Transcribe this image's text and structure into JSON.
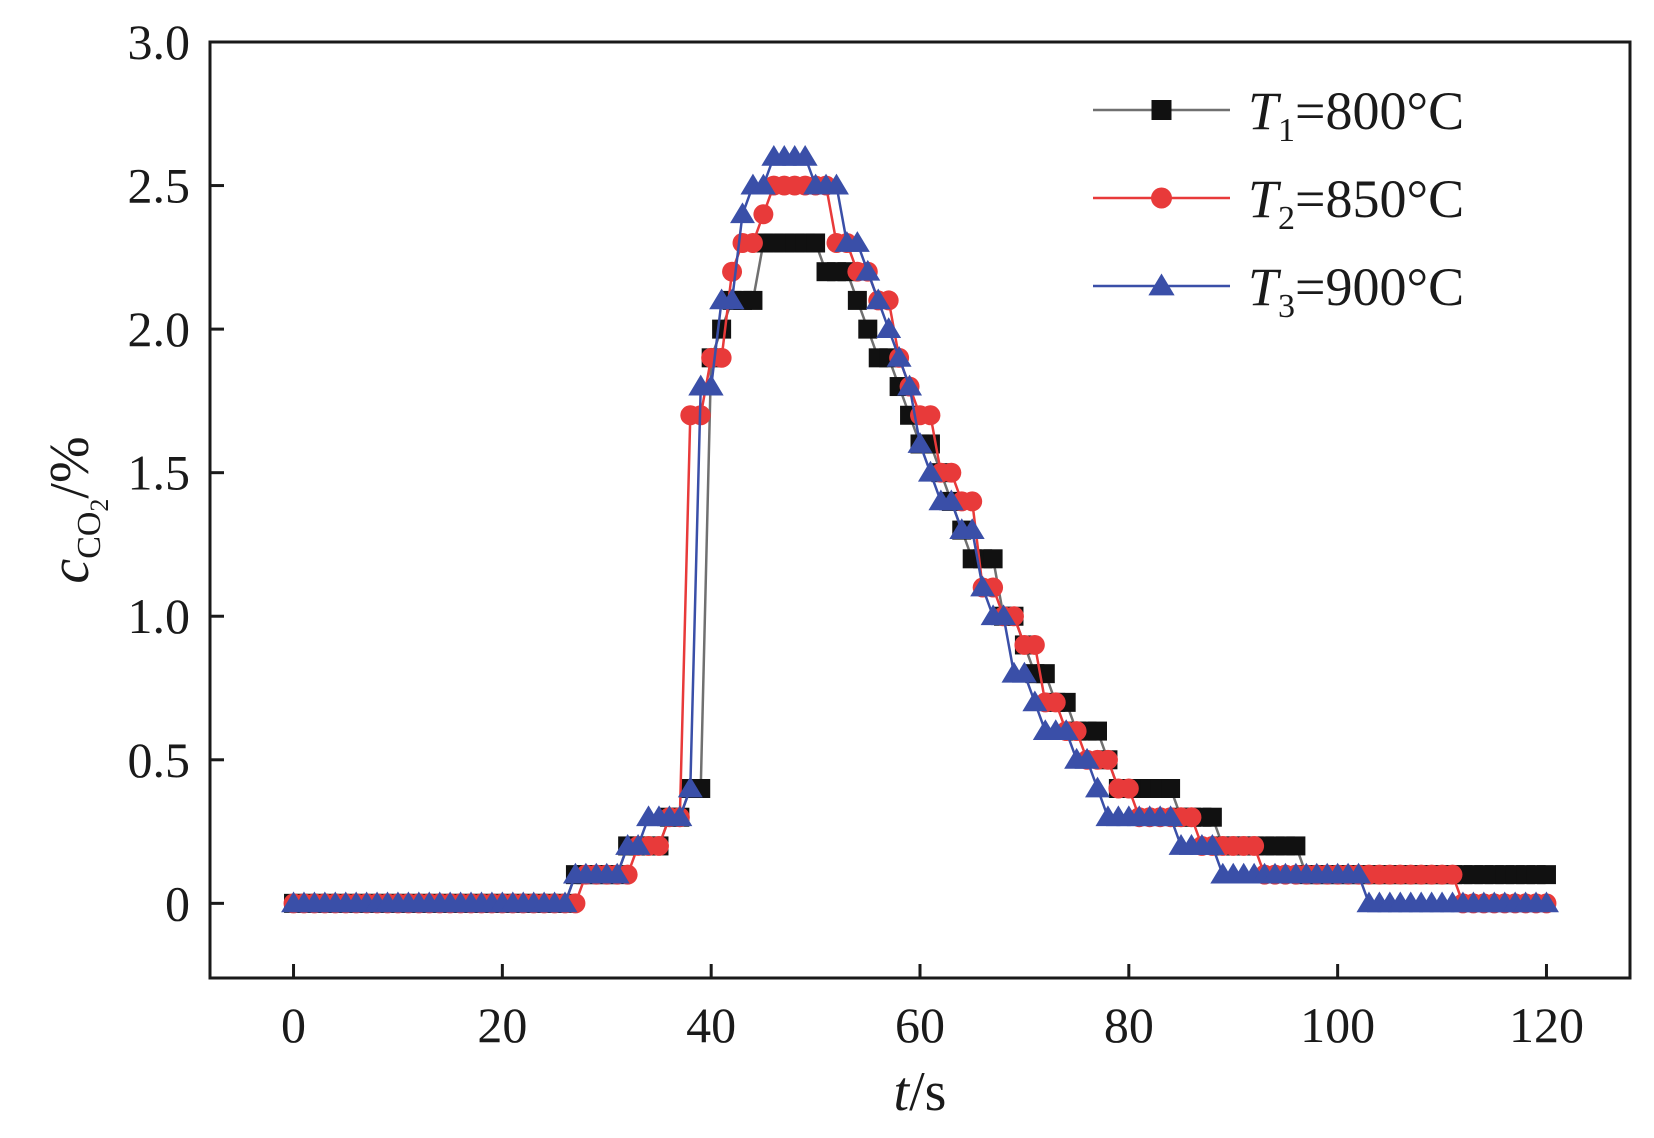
{
  "chart_data": {
    "type": "line",
    "xlabel": {
      "var": "t",
      "unit": "/s"
    },
    "ylabel": {
      "var": "c",
      "sub": "CO",
      "subsub": "2",
      "unit": "/%"
    },
    "xlim": [
      -8,
      128
    ],
    "ylim": [
      -0.26,
      3.0
    ],
    "xticks": [
      0,
      20,
      40,
      60,
      80,
      100,
      120
    ],
    "xtick_labels": [
      "0",
      "20",
      "40",
      "60",
      "80",
      "100",
      "120"
    ],
    "yticks": [
      0,
      0.5,
      1.0,
      1.5,
      2.0,
      2.5,
      3.0
    ],
    "ytick_labels": [
      "0",
      "0.5",
      "1.0",
      "1.5",
      "2.0",
      "2.5",
      "3.0"
    ],
    "legend_position": "top-right",
    "series": [
      {
        "name": "T1=800°C",
        "label_var": "T",
        "label_sub": "1",
        "label_rest": "=800°C",
        "line_color": "#707070",
        "marker_color": "#111111",
        "marker": "square",
        "x": [
          0,
          1,
          2,
          3,
          4,
          5,
          6,
          7,
          8,
          9,
          10,
          11,
          12,
          13,
          14,
          15,
          16,
          17,
          18,
          19,
          20,
          21,
          22,
          23,
          24,
          25,
          26,
          27,
          28,
          29,
          30,
          31,
          32,
          33,
          34,
          35,
          36,
          37,
          38,
          39,
          40,
          41,
          42,
          43,
          44,
          45,
          46,
          47,
          48,
          49,
          50,
          51,
          52,
          53,
          54,
          55,
          56,
          57,
          58,
          59,
          60,
          61,
          62,
          63,
          64,
          65,
          66,
          67,
          68,
          69,
          70,
          71,
          72,
          73,
          74,
          75,
          76,
          77,
          78,
          79,
          80,
          81,
          82,
          83,
          84,
          85,
          86,
          87,
          88,
          89,
          90,
          91,
          92,
          93,
          94,
          95,
          96,
          97,
          98,
          99,
          100,
          101,
          102,
          103,
          104,
          105,
          106,
          107,
          108,
          109,
          110,
          111,
          112,
          113,
          114,
          115,
          116,
          117,
          118,
          119,
          120
        ],
        "y": [
          0,
          0,
          0,
          0,
          0,
          0,
          0,
          0,
          0,
          0,
          0,
          0,
          0,
          0,
          0,
          0,
          0,
          0,
          0,
          0,
          0,
          0,
          0,
          0,
          0,
          0,
          0,
          0.1,
          0.1,
          0.1,
          0.1,
          0.1,
          0.2,
          0.2,
          0.2,
          0.2,
          0.3,
          0.3,
          0.4,
          0.4,
          1.9,
          2.0,
          2.1,
          2.1,
          2.1,
          2.3,
          2.3,
          2.3,
          2.3,
          2.3,
          2.3,
          2.2,
          2.2,
          2.2,
          2.1,
          2.0,
          1.9,
          1.9,
          1.8,
          1.7,
          1.6,
          1.6,
          1.5,
          1.4,
          1.3,
          1.2,
          1.2,
          1.2,
          1.0,
          1.0,
          0.9,
          0.8,
          0.8,
          0.7,
          0.7,
          0.6,
          0.6,
          0.6,
          0.5,
          0.4,
          0.4,
          0.4,
          0.4,
          0.4,
          0.4,
          0.3,
          0.3,
          0.3,
          0.3,
          0.2,
          0.2,
          0.2,
          0.2,
          0.2,
          0.2,
          0.2,
          0.2,
          0.1,
          0.1,
          0.1,
          0.1,
          0.1,
          0.1,
          0.1,
          0.1,
          0.1,
          0.1,
          0.1,
          0.1,
          0.1,
          0.1,
          0.1,
          0.1,
          0.1,
          0.1,
          0.1,
          0.1,
          0.1,
          0.1,
          0.1,
          0.1
        ]
      },
      {
        "name": "T2=850°C",
        "label_var": "T",
        "label_sub": "2",
        "label_rest": "=850°C",
        "line_color": "#e83a3a",
        "marker_color": "#e83a3a",
        "marker": "circle",
        "x": [
          0,
          1,
          2,
          3,
          4,
          5,
          6,
          7,
          8,
          9,
          10,
          11,
          12,
          13,
          14,
          15,
          16,
          17,
          18,
          19,
          20,
          21,
          22,
          23,
          24,
          25,
          26,
          27,
          28,
          29,
          30,
          31,
          32,
          33,
          34,
          35,
          36,
          37,
          38,
          39,
          40,
          41,
          42,
          43,
          44,
          45,
          46,
          47,
          48,
          49,
          50,
          51,
          52,
          53,
          54,
          55,
          56,
          57,
          58,
          59,
          60,
          61,
          62,
          63,
          64,
          65,
          66,
          67,
          68,
          69,
          70,
          71,
          72,
          73,
          74,
          75,
          76,
          77,
          78,
          79,
          80,
          81,
          82,
          83,
          84,
          85,
          86,
          87,
          88,
          89,
          90,
          91,
          92,
          93,
          94,
          95,
          96,
          97,
          98,
          99,
          100,
          101,
          102,
          103,
          104,
          105,
          106,
          107,
          108,
          109,
          110,
          111,
          112,
          113,
          114,
          115,
          116,
          117,
          118,
          119,
          120
        ],
        "y": [
          0,
          0,
          0,
          0,
          0,
          0,
          0,
          0,
          0,
          0,
          0,
          0,
          0,
          0,
          0,
          0,
          0,
          0,
          0,
          0,
          0,
          0,
          0,
          0,
          0,
          0,
          0,
          0,
          0.1,
          0.1,
          0.1,
          0.1,
          0.1,
          0.2,
          0.2,
          0.2,
          0.3,
          0.3,
          1.7,
          1.7,
          1.9,
          1.9,
          2.2,
          2.3,
          2.3,
          2.4,
          2.5,
          2.5,
          2.5,
          2.5,
          2.5,
          2.5,
          2.3,
          2.3,
          2.2,
          2.2,
          2.1,
          2.1,
          1.9,
          1.8,
          1.7,
          1.7,
          1.5,
          1.5,
          1.4,
          1.4,
          1.1,
          1.1,
          1.0,
          1.0,
          0.9,
          0.9,
          0.7,
          0.7,
          0.6,
          0.6,
          0.5,
          0.5,
          0.5,
          0.4,
          0.4,
          0.3,
          0.3,
          0.3,
          0.3,
          0.3,
          0.3,
          0.2,
          0.2,
          0.2,
          0.2,
          0.2,
          0.2,
          0.1,
          0.1,
          0.1,
          0.1,
          0.1,
          0.1,
          0.1,
          0.1,
          0.1,
          0.1,
          0.1,
          0.1,
          0.1,
          0.1,
          0.1,
          0.1,
          0.1,
          0.1,
          0.1,
          0,
          0,
          0,
          0,
          0,
          0,
          0,
          0,
          0
        ]
      },
      {
        "name": "T3=900°C",
        "label_var": "T",
        "label_sub": "3",
        "label_rest": "=900°C",
        "line_color": "#3a4fa8",
        "marker_color": "#3a4fa8",
        "marker": "triangle",
        "x": [
          0,
          1,
          2,
          3,
          4,
          5,
          6,
          7,
          8,
          9,
          10,
          11,
          12,
          13,
          14,
          15,
          16,
          17,
          18,
          19,
          20,
          21,
          22,
          23,
          24,
          25,
          26,
          27,
          28,
          29,
          30,
          31,
          32,
          33,
          34,
          35,
          36,
          37,
          38,
          39,
          40,
          41,
          42,
          43,
          44,
          45,
          46,
          47,
          48,
          49,
          50,
          51,
          52,
          53,
          54,
          55,
          56,
          57,
          58,
          59,
          60,
          61,
          62,
          63,
          64,
          65,
          66,
          67,
          68,
          69,
          70,
          71,
          72,
          73,
          74,
          75,
          76,
          77,
          78,
          79,
          80,
          81,
          82,
          83,
          84,
          85,
          86,
          87,
          88,
          89,
          90,
          91,
          92,
          93,
          94,
          95,
          96,
          97,
          98,
          99,
          100,
          101,
          102,
          103,
          104,
          105,
          106,
          107,
          108,
          109,
          110,
          111,
          112,
          113,
          114,
          115,
          116,
          117,
          118,
          119,
          120
        ],
        "y": [
          0,
          0,
          0,
          0,
          0,
          0,
          0,
          0,
          0,
          0,
          0,
          0,
          0,
          0,
          0,
          0,
          0,
          0,
          0,
          0,
          0,
          0,
          0,
          0,
          0,
          0,
          0,
          0.1,
          0.1,
          0.1,
          0.1,
          0.1,
          0.2,
          0.2,
          0.3,
          0.3,
          0.3,
          0.3,
          0.4,
          1.8,
          1.8,
          2.1,
          2.1,
          2.4,
          2.5,
          2.5,
          2.6,
          2.6,
          2.6,
          2.6,
          2.5,
          2.5,
          2.5,
          2.3,
          2.3,
          2.2,
          2.1,
          2.0,
          1.9,
          1.8,
          1.6,
          1.5,
          1.4,
          1.4,
          1.3,
          1.3,
          1.1,
          1.0,
          1.0,
          0.8,
          0.8,
          0.7,
          0.6,
          0.6,
          0.6,
          0.5,
          0.5,
          0.4,
          0.3,
          0.3,
          0.3,
          0.3,
          0.3,
          0.3,
          0.3,
          0.2,
          0.2,
          0.2,
          0.2,
          0.1,
          0.1,
          0.1,
          0.1,
          0.1,
          0.1,
          0.1,
          0.1,
          0.1,
          0.1,
          0.1,
          0.1,
          0.1,
          0.1,
          0,
          0,
          0,
          0,
          0,
          0,
          0,
          0,
          0,
          0,
          0,
          0,
          0,
          0,
          0,
          0,
          0,
          0
        ]
      }
    ]
  }
}
